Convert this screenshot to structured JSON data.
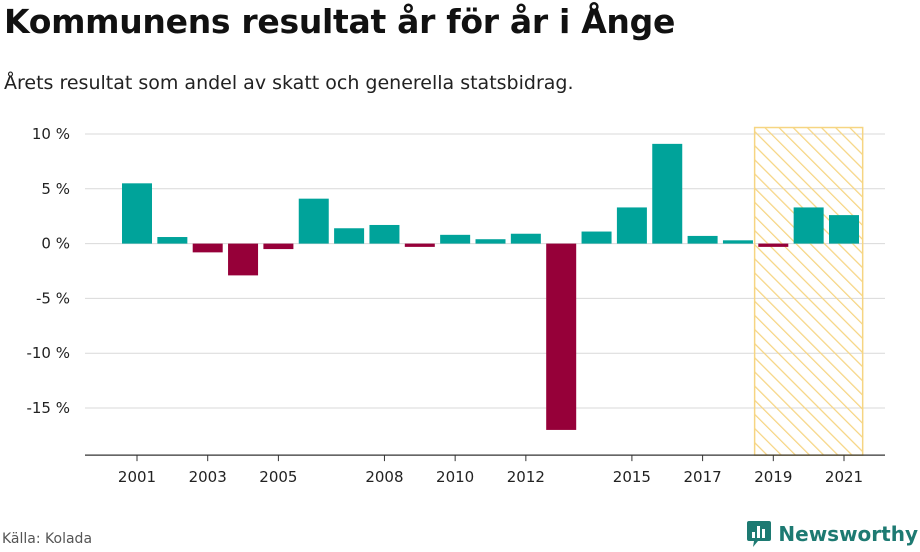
{
  "header": {
    "title": "Kommunens resultat år för år i Ånge",
    "subtitle": "Årets resultat som andel av skatt och generella statsbidrag."
  },
  "footer": {
    "source": "Källa: Kolada",
    "brand": "Newsworthy"
  },
  "colors": {
    "positive": "#00a39a",
    "negative": "#960039",
    "highlight_stroke": "#f6d582",
    "grid": "#d9d9d9",
    "axis": "#333333",
    "brand": "#1d7a72"
  },
  "icons": {
    "brand_logo": "bar-chart-speech-icon"
  },
  "chart_data": {
    "type": "bar",
    "categories": [
      "2001",
      "2002",
      "2003",
      "2004",
      "2005",
      "2006",
      "2007",
      "2008",
      "2009",
      "2010",
      "2011",
      "2012",
      "2013",
      "2014",
      "2015",
      "2016",
      "2017",
      "2018",
      "2019",
      "2020",
      "2021"
    ],
    "values": [
      5.5,
      0.6,
      -0.8,
      -2.9,
      -0.5,
      4.1,
      1.4,
      1.7,
      -0.3,
      0.8,
      0.4,
      0.9,
      -17.0,
      1.1,
      3.3,
      9.1,
      0.7,
      0.3,
      -0.3,
      3.3,
      2.6
    ],
    "x_tick_labels": [
      "2001",
      "2003",
      "2005",
      "2008",
      "2010",
      "2012",
      "2015",
      "2017",
      "2019",
      "2021"
    ],
    "y_ticks": [
      10,
      5,
      0,
      -5,
      -10,
      -15
    ],
    "y_tick_labels": [
      "10 %",
      "5 %",
      "0 %",
      "-5 %",
      "-10 %",
      "-15 %"
    ],
    "ylim": [
      -19.3,
      10.5
    ],
    "highlight_range": [
      "2019",
      "2021"
    ],
    "grid": true,
    "title": "",
    "xlabel": "",
    "ylabel": ""
  }
}
